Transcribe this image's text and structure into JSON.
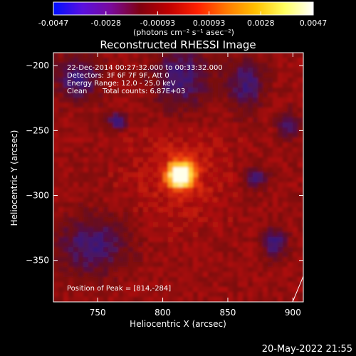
{
  "colorbar": {
    "ticks": [
      "-0.0047",
      "-0.0028",
      "-0.00093",
      "0.00093",
      "0.0028",
      "0.0047"
    ],
    "tick_values": [
      -0.0047,
      -0.0028,
      -0.00093,
      0.00093,
      0.0028,
      0.0047
    ],
    "range": [
      -0.0047,
      0.0047
    ],
    "colormap": [
      "#0010ff",
      "#5a10e0",
      "#7a0a9a",
      "#800010",
      "#c00000",
      "#ff2000",
      "#ff7a00",
      "#ffc000",
      "#ffff60",
      "#ffffff"
    ],
    "units_text": "(photons cm⁻² s⁻¹ asec⁻²)"
  },
  "chart_data": {
    "type": "heatmap",
    "title": "Reconstructed RHESSI Image",
    "xlabel": "Heliocentric X (arcsec)",
    "ylabel": "Heliocentric Y (arcsec)",
    "xlim": [
      716,
      908
    ],
    "ylim": [
      -382,
      -190
    ],
    "xticks": [
      750,
      800,
      850,
      900
    ],
    "yticks": [
      -200,
      -250,
      -300,
      -350
    ],
    "xtick_labels": [
      "750",
      "800",
      "850",
      "900"
    ],
    "ytick_labels": [
      "−200",
      "−250",
      "−300",
      "−350"
    ],
    "peak": {
      "x": 814,
      "y": -284
    },
    "annotations": [
      "22-Dec-2014 00:27:32.000 to 00:33:32.000",
      "Detectors: 3F 6F 7F 9F, Att 0",
      "Energy Range: 12.0 - 25.0 keV",
      "Clean",
      "Total counts: 6.87E+03",
      "Position of Peak = [814,-284]"
    ]
  },
  "footer": {
    "date": "20-May-2022 21:55"
  },
  "colors": {
    "background": "#000000",
    "text": "#ffffff"
  }
}
